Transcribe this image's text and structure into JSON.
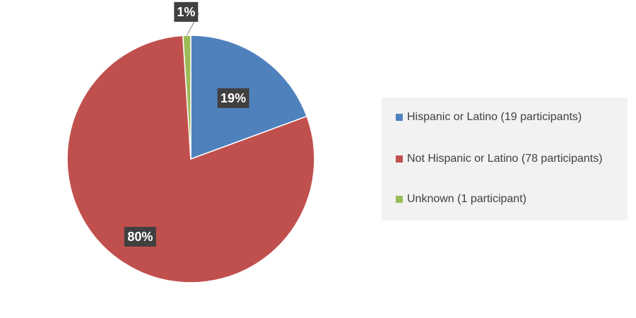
{
  "chart_data": {
    "type": "pie",
    "title": "",
    "legend_position": "right",
    "slices": [
      {
        "label": "Hispanic or Latino (19 participants)",
        "value": 19,
        "percent_label": "19%",
        "color": "#4f81bd"
      },
      {
        "label": "Not Hispanic or Latino (78 participants)",
        "value": 78,
        "percent_label": "80%",
        "color": "#c0504d"
      },
      {
        "label": "Unknown (1 participant)",
        "value": 1,
        "percent_label": "1%",
        "color": "#9bbb59"
      }
    ]
  }
}
